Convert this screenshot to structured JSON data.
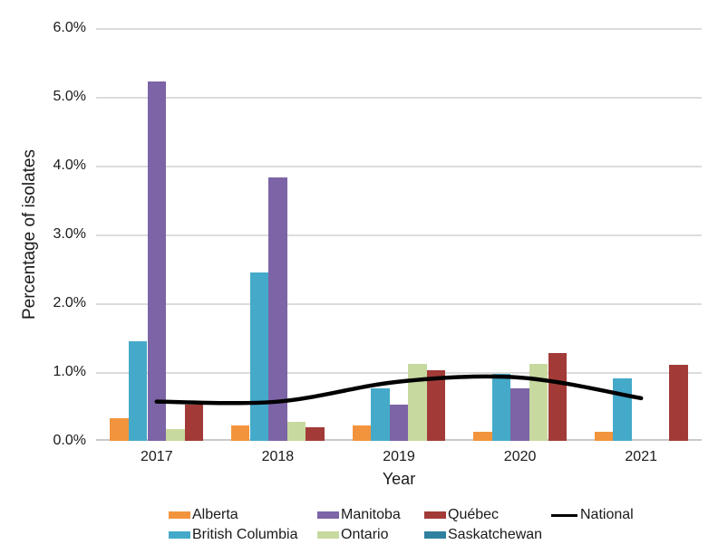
{
  "chart_data": {
    "type": "bar",
    "title": "",
    "xlabel": "Year",
    "ylabel": "Percentage of isolates",
    "unit": "percent",
    "categories": [
      "2017",
      "2018",
      "2019",
      "2020",
      "2021"
    ],
    "y_ticks": [
      "0.0%",
      "1.0%",
      "2.0%",
      "3.0%",
      "4.0%",
      "5.0%",
      "6.0%"
    ],
    "ylim": [
      0,
      6
    ],
    "grid": true,
    "legend_position": "bottom",
    "series": [
      {
        "name": "Alberta",
        "type": "bar",
        "color": "#F2943D",
        "values": [
          0.33,
          0.22,
          0.22,
          0.13,
          0.13
        ]
      },
      {
        "name": "British Columbia",
        "type": "bar",
        "color": "#45AAC9",
        "values": [
          1.45,
          2.45,
          0.76,
          0.97,
          0.91
        ]
      },
      {
        "name": "Manitoba",
        "type": "bar",
        "color": "#7C64A6",
        "values": [
          5.22,
          3.83,
          0.53,
          0.76,
          0
        ]
      },
      {
        "name": "Ontario",
        "type": "bar",
        "color": "#C7D99F",
        "values": [
          0.17,
          0.28,
          1.12,
          1.12,
          0
        ]
      },
      {
        "name": "Québec",
        "type": "bar",
        "color": "#A23B38",
        "values": [
          0.53,
          0.2,
          1.03,
          1.27,
          1.1
        ]
      },
      {
        "name": "Saskatchewan",
        "type": "bar",
        "color": "#2E819E",
        "values": [
          0,
          0,
          0,
          0,
          0
        ]
      },
      {
        "name": "National",
        "type": "line",
        "color": "#000000",
        "values": [
          0.57,
          0.57,
          0.86,
          0.92,
          0.62
        ]
      }
    ]
  }
}
